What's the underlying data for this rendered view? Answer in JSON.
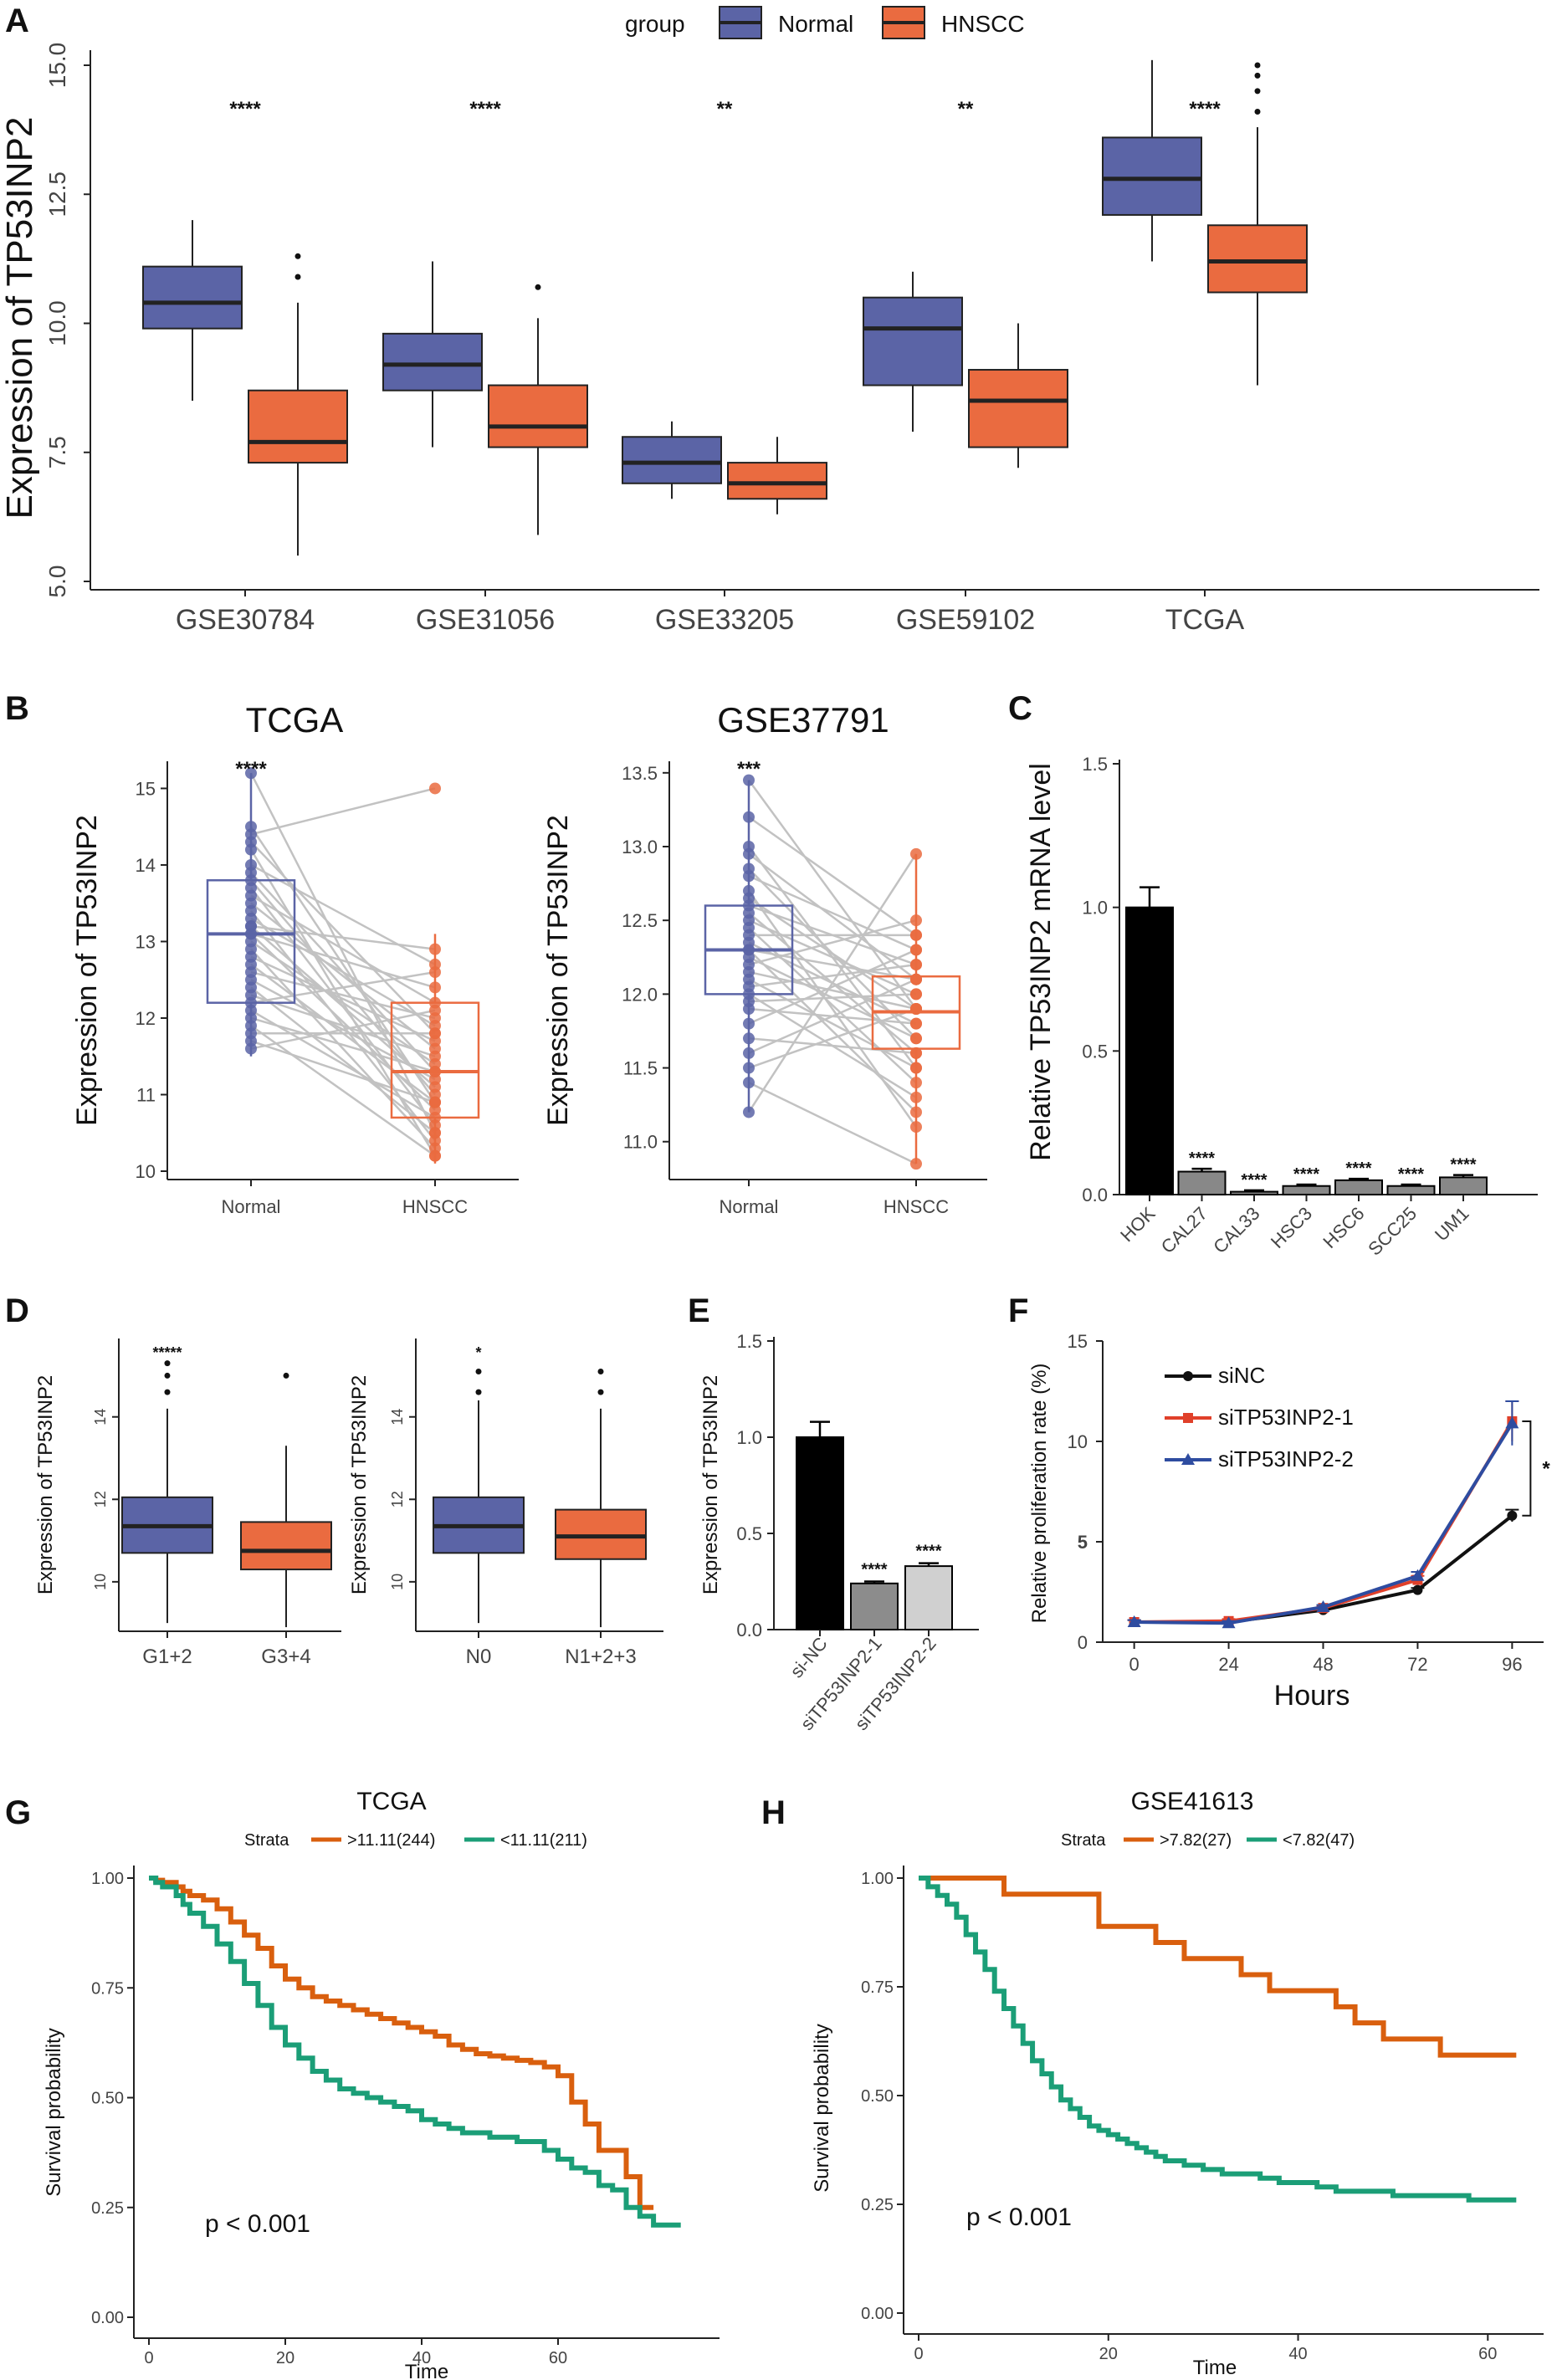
{
  "colors": {
    "normal": "#5b64a6",
    "hnscc": "#ea6b40",
    "strata_high": "#d95f0e",
    "strata_low": "#1b9e77",
    "blue_line": "#2e4ca0",
    "red_line": "#e0402a"
  },
  "letters": {
    "A": "A",
    "B": "B",
    "C": "C",
    "D": "D",
    "E": "E",
    "F": "F",
    "G": "G",
    "H": "H"
  },
  "chart_data": [
    {
      "id": "A",
      "type": "box",
      "title": "",
      "ylabel": "Expression of TP53INP2",
      "xlabel": "",
      "ylim": [
        5,
        16
      ],
      "yticks": [
        "5.0",
        "7.5",
        "10.0",
        "12.5",
        "15.0"
      ],
      "legend": {
        "title": "group",
        "items": [
          "Normal",
          "HNSCC"
        ],
        "position": "top"
      },
      "categories": [
        "GSE30784",
        "GSE31056",
        "GSE33205",
        "GSE59102",
        "TCGA"
      ],
      "significance": [
        "****",
        "****",
        "**",
        "**",
        "****"
      ],
      "series": [
        {
          "name": "Normal",
          "boxes": [
            {
              "min": 8.5,
              "q1": 9.9,
              "median": 10.4,
              "q3": 11.1,
              "max": 12.0,
              "outliers": []
            },
            {
              "min": 7.6,
              "q1": 8.7,
              "median": 9.2,
              "q3": 9.8,
              "max": 11.2,
              "outliers": []
            },
            {
              "min": 6.6,
              "q1": 6.9,
              "median": 7.3,
              "q3": 7.8,
              "max": 8.1,
              "outliers": []
            },
            {
              "min": 7.9,
              "q1": 8.8,
              "median": 9.9,
              "q3": 10.5,
              "max": 11.0,
              "outliers": []
            },
            {
              "min": 11.2,
              "q1": 12.1,
              "median": 12.8,
              "q3": 13.6,
              "max": 15.1,
              "outliers": []
            }
          ]
        },
        {
          "name": "HNSCC",
          "boxes": [
            {
              "min": 5.5,
              "q1": 7.3,
              "median": 7.7,
              "q3": 8.7,
              "max": 10.4,
              "outliers": [
                10.9,
                11.3
              ]
            },
            {
              "min": 5.9,
              "q1": 7.6,
              "median": 8.0,
              "q3": 8.8,
              "max": 10.1,
              "outliers": [
                10.7
              ]
            },
            {
              "min": 6.3,
              "q1": 6.6,
              "median": 6.9,
              "q3": 7.3,
              "max": 7.8,
              "outliers": []
            },
            {
              "min": 7.2,
              "q1": 7.6,
              "median": 8.5,
              "q3": 9.1,
              "max": 10.0,
              "outliers": []
            },
            {
              "min": 8.8,
              "q1": 10.6,
              "median": 11.2,
              "q3": 11.9,
              "max": 13.8,
              "outliers": [
                14.1,
                14.5,
                14.8,
                15.0
              ]
            }
          ]
        }
      ]
    },
    {
      "id": "B1",
      "type": "paired",
      "title": "TCGA",
      "ylabel": "Expression of TP53INP2",
      "categories": [
        "Normal",
        "HNSCC"
      ],
      "significance": "****",
      "ylim": [
        10,
        15.3
      ],
      "yticks": [
        "10",
        "11",
        "12",
        "13",
        "14",
        "15"
      ],
      "boxes": [
        {
          "min": 11.5,
          "q1": 12.2,
          "median": 13.1,
          "q3": 13.8,
          "max": 15.2
        },
        {
          "min": 10.1,
          "q1": 10.7,
          "median": 11.3,
          "q3": 12.2,
          "max": 13.1
        }
      ],
      "pairs": [
        [
          15.2,
          10.5
        ],
        [
          14.5,
          10.9
        ],
        [
          14.3,
          11.8
        ],
        [
          14.2,
          10.2
        ],
        [
          14.0,
          12.7
        ],
        [
          13.9,
          11.3
        ],
        [
          13.8,
          11.0
        ],
        [
          13.7,
          10.6
        ],
        [
          13.6,
          12.2
        ],
        [
          13.5,
          11.6
        ],
        [
          13.4,
          10.4
        ],
        [
          13.3,
          11.9
        ],
        [
          13.2,
          11.1
        ],
        [
          13.1,
          10.8
        ],
        [
          13.1,
          12.4
        ],
        [
          13.0,
          11.4
        ],
        [
          12.9,
          10.3
        ],
        [
          12.8,
          11.7
        ],
        [
          12.7,
          10.9
        ],
        [
          12.6,
          12.0
        ],
        [
          12.5,
          11.2
        ],
        [
          12.4,
          10.5
        ],
        [
          12.3,
          11.5
        ],
        [
          12.2,
          12.6
        ],
        [
          12.1,
          10.7
        ],
        [
          12.0,
          11.3
        ],
        [
          11.9,
          10.2
        ],
        [
          11.8,
          11.8
        ],
        [
          11.7,
          10.9
        ],
        [
          11.6,
          12.1
        ],
        [
          14.4,
          15.0
        ],
        [
          13.2,
          12.9
        ]
      ]
    },
    {
      "id": "B2",
      "type": "paired",
      "title": "GSE37791",
      "ylabel": "Expression of TP53INP2",
      "categories": [
        "Normal",
        "HNSCC"
      ],
      "significance": "***",
      "ylim": [
        10.8,
        13.55
      ],
      "yticks": [
        "11.0",
        "11.5",
        "12.0",
        "12.5",
        "13.0",
        "13.5"
      ],
      "boxes": [
        {
          "min": 11.2,
          "q1": 12.0,
          "median": 12.3,
          "q3": 12.6,
          "max": 13.45
        },
        {
          "min": 10.85,
          "q1": 11.63,
          "median": 11.88,
          "q3": 12.12,
          "max": 12.95
        }
      ],
      "pairs": [
        [
          13.45,
          11.9
        ],
        [
          13.2,
          12.4
        ],
        [
          13.0,
          11.5
        ],
        [
          12.95,
          12.1
        ],
        [
          12.85,
          11.7
        ],
        [
          12.8,
          12.3
        ],
        [
          12.7,
          11.1
        ],
        [
          12.65,
          11.9
        ],
        [
          12.6,
          12.2
        ],
        [
          12.55,
          11.6
        ],
        [
          12.5,
          12.0
        ],
        [
          12.45,
          11.4
        ],
        [
          12.4,
          12.4
        ],
        [
          12.35,
          11.8
        ],
        [
          12.3,
          11.2
        ],
        [
          12.3,
          12.1
        ],
        [
          12.25,
          11.7
        ],
        [
          12.2,
          12.5
        ],
        [
          12.15,
          11.9
        ],
        [
          12.1,
          11.5
        ],
        [
          12.05,
          12.2
        ],
        [
          12.0,
          11.3
        ],
        [
          11.95,
          12.0
        ],
        [
          11.9,
          11.8
        ],
        [
          11.8,
          12.3
        ],
        [
          11.7,
          11.6
        ],
        [
          11.6,
          12.1
        ],
        [
          11.5,
          11.9
        ],
        [
          11.4,
          10.85
        ],
        [
          11.2,
          12.95
        ]
      ]
    },
    {
      "id": "C",
      "type": "bar",
      "ylabel": "Relative TP53INP2 mRNA level",
      "categories": [
        "HOK",
        "CAL27",
        "CAL33",
        "HSC3",
        "HSC6",
        "SCC25",
        "UM1"
      ],
      "values": [
        1.0,
        0.08,
        0.01,
        0.03,
        0.05,
        0.03,
        0.06
      ],
      "errors": [
        0.07,
        0.01,
        0.005,
        0.005,
        0.005,
        0.005,
        0.008
      ],
      "significance": [
        "",
        "****",
        "****",
        "****",
        "****",
        "****",
        "****"
      ],
      "ylim": [
        0,
        1.5
      ],
      "yticks": [
        "0.0",
        "0.5",
        "1.0",
        "1.5"
      ]
    },
    {
      "id": "D1",
      "type": "box",
      "ylabel": "Expression of TP53INP2",
      "categories": [
        "G1+2",
        "G3+4"
      ],
      "significance": "*****",
      "ylim": [
        8.8,
        15.8
      ],
      "yticks": [
        "10",
        "12",
        "14"
      ],
      "boxes": [
        {
          "min": 9.0,
          "q1": 10.7,
          "median": 11.35,
          "q3": 12.05,
          "max": 14.2,
          "outliers": [
            14.6,
            15.0,
            15.3
          ],
          "color": "normal"
        },
        {
          "min": 8.9,
          "q1": 10.3,
          "median": 10.75,
          "q3": 11.45,
          "max": 13.3,
          "outliers": [
            15.0
          ],
          "color": "hnscc"
        }
      ]
    },
    {
      "id": "D2",
      "type": "box",
      "ylabel": "Expression of TP53INP2",
      "categories": [
        "N0",
        "N1+2+3"
      ],
      "significance": "*",
      "ylim": [
        8.8,
        15.8
      ],
      "yticks": [
        "10",
        "12",
        "14"
      ],
      "boxes": [
        {
          "min": 9.0,
          "q1": 10.7,
          "median": 11.35,
          "q3": 12.05,
          "max": 14.4,
          "outliers": [
            14.6,
            15.1
          ],
          "color": "normal"
        },
        {
          "min": 8.9,
          "q1": 10.55,
          "median": 11.1,
          "q3": 11.75,
          "max": 14.2,
          "outliers": [
            14.6,
            15.1
          ],
          "color": "hnscc"
        }
      ]
    },
    {
      "id": "E",
      "type": "bar",
      "ylabel": "Expression of TP53INP2",
      "categories": [
        "si-NC",
        "siTP53INP2-1",
        "siTP53INP2-2"
      ],
      "values": [
        1.0,
        0.24,
        0.33
      ],
      "errors": [
        0.08,
        0.01,
        0.015
      ],
      "significance": [
        "",
        "****",
        "****"
      ],
      "ylim": [
        0,
        1.5
      ],
      "yticks": [
        "0.0",
        "0.5",
        "1.0",
        "1.5"
      ]
    },
    {
      "id": "F",
      "type": "line",
      "xlabel": "Hours",
      "ylabel": "Relative proliferation rate (%)",
      "x": [
        0,
        24,
        48,
        72,
        96
      ],
      "series": [
        {
          "name": "siNC",
          "values": [
            1.0,
            1.0,
            1.6,
            2.6,
            6.3
          ],
          "errors": [
            0.1,
            0.1,
            0.1,
            0.1,
            0.3
          ]
        },
        {
          "name": "siTP53INP2-1",
          "values": [
            1.0,
            1.05,
            1.7,
            3.1,
            11.0
          ],
          "errors": [
            0.1,
            0.1,
            0.1,
            0.2,
            1.0
          ]
        },
        {
          "name": "siTP53INP2-2",
          "values": [
            1.0,
            0.95,
            1.75,
            3.3,
            10.9
          ],
          "errors": [
            0.1,
            0.1,
            0.1,
            0.2,
            1.1
          ]
        }
      ],
      "significance": "*",
      "ylim": [
        0,
        15
      ],
      "yticks": [
        "0",
        "5",
        "10",
        "15"
      ],
      "xlim": [
        -8,
        104
      ]
    },
    {
      "id": "G",
      "type": "survival",
      "title": "TCGA",
      "xlabel": "Time",
      "ylabel": "Survival probability",
      "legend": {
        "title": "Strata",
        "items": [
          ">11.11(244)",
          "<11.11(211)"
        ],
        "position": "top"
      },
      "pvalue": "p < 0.001",
      "xlim": [
        0,
        80
      ],
      "xticks": [
        "0",
        "20",
        "40",
        "60"
      ],
      "ylim": [
        0,
        1
      ],
      "yticks": [
        "0.00",
        "0.25",
        "0.50",
        "0.75",
        "1.00"
      ],
      "series": [
        {
          "name": ">11.11(244)",
          "times": [
            0,
            1,
            2,
            4,
            5,
            6,
            8,
            10,
            12,
            14,
            16,
            18,
            20,
            22,
            24,
            26,
            28,
            30,
            32,
            34,
            36,
            38,
            40,
            42,
            44,
            46,
            48,
            50,
            52,
            54,
            56,
            58,
            60,
            62,
            64,
            66,
            68,
            70,
            72,
            74
          ],
          "surv": [
            1.0,
            0.995,
            0.99,
            0.98,
            0.97,
            0.96,
            0.95,
            0.93,
            0.9,
            0.87,
            0.84,
            0.8,
            0.77,
            0.75,
            0.73,
            0.72,
            0.71,
            0.7,
            0.69,
            0.68,
            0.67,
            0.66,
            0.65,
            0.64,
            0.62,
            0.61,
            0.6,
            0.595,
            0.59,
            0.585,
            0.58,
            0.57,
            0.55,
            0.49,
            0.44,
            0.38,
            0.38,
            0.32,
            0.25,
            0.25
          ]
        },
        {
          "name": "<11.11(211)",
          "times": [
            0,
            1,
            2,
            4,
            5,
            6,
            8,
            10,
            12,
            14,
            16,
            18,
            20,
            22,
            24,
            26,
            28,
            30,
            32,
            34,
            36,
            38,
            40,
            42,
            44,
            46,
            48,
            50,
            52,
            54,
            56,
            58,
            60,
            62,
            64,
            66,
            68,
            70,
            72,
            74,
            78
          ],
          "surv": [
            1.0,
            0.99,
            0.98,
            0.96,
            0.94,
            0.92,
            0.89,
            0.85,
            0.81,
            0.76,
            0.71,
            0.66,
            0.62,
            0.59,
            0.56,
            0.54,
            0.52,
            0.51,
            0.5,
            0.49,
            0.48,
            0.47,
            0.45,
            0.44,
            0.43,
            0.42,
            0.42,
            0.41,
            0.41,
            0.4,
            0.4,
            0.38,
            0.36,
            0.34,
            0.33,
            0.3,
            0.29,
            0.25,
            0.23,
            0.21,
            0.21
          ]
        }
      ]
    },
    {
      "id": "H",
      "type": "survival",
      "title": "GSE41613",
      "xlabel": "Time",
      "ylabel": "Survival probability",
      "legend": {
        "title": "Strata",
        "items": [
          ">7.82(27)",
          "<7.82(47)"
        ],
        "position": "top"
      },
      "pvalue": "p < 0.001",
      "xlim": [
        0,
        65
      ],
      "xticks": [
        "0",
        "20",
        "40",
        "60"
      ],
      "ylim": [
        0,
        1
      ],
      "yticks": [
        "0.00",
        "0.25",
        "0.50",
        "0.75",
        "1.00"
      ],
      "series": [
        {
          "name": ">7.82(27)",
          "times": [
            0,
            9,
            19,
            25,
            28,
            34,
            37,
            44,
            46,
            49,
            55,
            63
          ],
          "surv": [
            1.0,
            0.963,
            0.889,
            0.852,
            0.815,
            0.778,
            0.741,
            0.704,
            0.667,
            0.63,
            0.593,
            0.593
          ]
        },
        {
          "name": "<7.82(47)",
          "times": [
            0,
            1,
            2,
            3,
            4,
            5,
            6,
            7,
            8,
            9,
            10,
            11,
            12,
            13,
            14,
            15,
            16,
            17,
            18,
            19,
            20,
            21,
            22,
            23,
            24,
            25,
            26,
            28,
            30,
            32,
            34,
            36,
            38,
            40,
            42,
            44,
            46,
            50,
            54,
            58,
            63
          ],
          "surv": [
            1.0,
            0.98,
            0.96,
            0.94,
            0.91,
            0.87,
            0.83,
            0.79,
            0.74,
            0.7,
            0.66,
            0.62,
            0.58,
            0.55,
            0.52,
            0.49,
            0.47,
            0.45,
            0.43,
            0.42,
            0.41,
            0.4,
            0.39,
            0.38,
            0.37,
            0.36,
            0.35,
            0.34,
            0.33,
            0.32,
            0.32,
            0.31,
            0.3,
            0.3,
            0.29,
            0.28,
            0.28,
            0.27,
            0.27,
            0.26,
            0.26
          ]
        }
      ]
    }
  ]
}
